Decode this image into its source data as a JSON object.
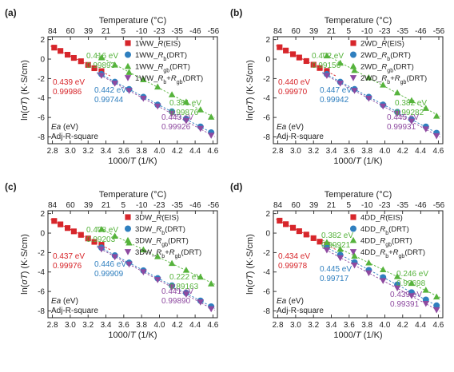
{
  "figure": {
    "x_axis_label": "1000/T (1/K)",
    "y_axis_label": "ln(σT) (K·S/cm)",
    "top_axis_label": "Temperature (°C)",
    "ea_label": "Ea (eV)",
    "adj_label": "Adj-R-square",
    "colors": {
      "eis": "#d7262b",
      "rb": "#2f7fbf",
      "rgb": "#56b33c",
      "sum": "#8e4aa0",
      "axis": "#222222"
    }
  },
  "chart_data": [
    {
      "type": "scatter",
      "panel": "(a)",
      "xlabel": "1000/T (1/K)",
      "ylabel": "ln(σT) (K·S/cm)",
      "top_xlabel": "Temperature (°C)",
      "xlim": [
        2.75,
        4.65
      ],
      "ylim": [
        -8.7,
        2.3
      ],
      "x_ticks": [
        "2.8",
        "3.0",
        "3.2",
        "3.4",
        "3.6",
        "3.8",
        "4.0",
        "4.2",
        "4.4",
        "4.6"
      ],
      "top_ticks": [
        "84",
        "60",
        "39",
        "21",
        "5",
        "-10",
        "-23",
        "-35",
        "-46",
        "-56"
      ],
      "series": [
        {
          "name": "1WW_R(EIS)",
          "marker": "square",
          "color": "#d7262b",
          "x": [
            2.82,
            2.89,
            2.97,
            3.04,
            3.12,
            3.2,
            3.27,
            3.35
          ],
          "y": [
            1.18,
            0.84,
            0.45,
            0.12,
            -0.22,
            -0.6,
            -0.94,
            -1.24
          ]
        },
        {
          "name": "1WW_Rb(DRT)",
          "marker": "circle",
          "color": "#2f7fbf",
          "x": [
            3.35,
            3.5,
            3.66,
            3.82,
            3.98,
            4.14,
            4.3,
            4.46,
            4.58
          ],
          "y": [
            -1.55,
            -2.35,
            -3.1,
            -3.9,
            -4.7,
            -5.4,
            -6.15,
            -6.95,
            -7.55
          ]
        },
        {
          "name": "1WW_Rgb(DRT)",
          "marker": "triangle-up",
          "color": "#56b33c",
          "x": [
            3.35,
            3.5,
            3.66,
            3.82,
            3.98,
            4.14,
            4.3,
            4.46,
            4.58
          ],
          "y": [
            0.15,
            -0.6,
            -1.35,
            -2.1,
            -2.85,
            -3.65,
            -4.4,
            -5.2,
            -5.95
          ]
        },
        {
          "name": "1WW_Rb+Rgb(DRT)",
          "marker": "triangle-down",
          "color": "#8e4aa0",
          "x": [
            3.35,
            3.5,
            3.66,
            3.82,
            3.98,
            4.14,
            4.3,
            4.46,
            4.58
          ],
          "y": [
            -1.7,
            -2.5,
            -3.25,
            -4.05,
            -4.85,
            -5.6,
            -6.35,
            -7.15,
            -7.85
          ]
        }
      ],
      "annotations": [
        {
          "series": "EIS",
          "ea": "0.439 eV",
          "r2": "0.99986"
        },
        {
          "series": "Rb",
          "ea": "0.442 eV",
          "r2": "0.99744"
        },
        {
          "series": "Rgb_low",
          "ea": "0.416 eV",
          "r2": "0.99893"
        },
        {
          "series": "Rgb_high",
          "ea": "0.381 eV",
          "r2": "0.99876"
        },
        {
          "series": "sum",
          "ea": "0.443 eV",
          "r2": "0.99926"
        }
      ]
    },
    {
      "type": "scatter",
      "panel": "(b)",
      "xlabel": "1000/T (1/K)",
      "ylabel": "ln(σT) (K·S/cm)",
      "top_xlabel": "Temperature (°C)",
      "xlim": [
        2.75,
        4.65
      ],
      "ylim": [
        -8.7,
        2.3
      ],
      "x_ticks": [
        "2.8",
        "3.0",
        "3.2",
        "3.4",
        "3.6",
        "3.8",
        "4.0",
        "4.2",
        "4.4",
        "4.6"
      ],
      "top_ticks": [
        "84",
        "60",
        "39",
        "21",
        "5",
        "-10",
        "-23",
        "-35",
        "-46",
        "-56"
      ],
      "series": [
        {
          "name": "2WD_R(EIS)",
          "marker": "square",
          "color": "#d7262b",
          "x": [
            2.82,
            2.89,
            2.97,
            3.04,
            3.12,
            3.2,
            3.27,
            3.35
          ],
          "y": [
            1.22,
            0.88,
            0.5,
            0.16,
            -0.2,
            -0.58,
            -0.92,
            -1.22
          ]
        },
        {
          "name": "2WD_Rb(DRT)",
          "marker": "circle",
          "color": "#2f7fbf",
          "x": [
            3.35,
            3.5,
            3.66,
            3.82,
            3.98,
            4.14,
            4.3,
            4.46,
            4.58
          ],
          "y": [
            -1.55,
            -2.35,
            -3.1,
            -3.9,
            -4.7,
            -5.45,
            -6.2,
            -6.95,
            -7.6
          ]
        },
        {
          "name": "2WD_Rgb(DRT)",
          "marker": "triangle-up",
          "color": "#56b33c",
          "x": [
            3.35,
            3.5,
            3.66,
            3.82,
            3.98,
            4.14,
            4.3,
            4.46,
            4.58
          ],
          "y": [
            0.35,
            -0.4,
            -1.15,
            -1.9,
            -2.65,
            -3.45,
            -4.25,
            -5.05,
            -5.85
          ]
        },
        {
          "name": "2WD_Rb+Rgb(DRT)",
          "marker": "triangle-down",
          "color": "#8e4aa0",
          "x": [
            3.35,
            3.5,
            3.66,
            3.82,
            3.98,
            4.14,
            4.3,
            4.46,
            4.58
          ],
          "y": [
            -1.7,
            -2.5,
            -3.25,
            -4.05,
            -4.85,
            -5.6,
            -6.4,
            -7.2,
            -7.9
          ]
        }
      ],
      "annotations": [
        {
          "series": "EIS",
          "ea": "0.440 eV",
          "r2": "0.99970"
        },
        {
          "series": "Rb",
          "ea": "0.447 eV",
          "r2": "0.99942"
        },
        {
          "series": "Rgb_low",
          "ea": "0.402 eV",
          "r2": "0.99156"
        },
        {
          "series": "Rgb_high",
          "ea": "0.382 eV",
          "r2": "0.99282"
        },
        {
          "series": "sum",
          "ea": "0.445 eV",
          "r2": "0.99931"
        }
      ]
    },
    {
      "type": "scatter",
      "panel": "(c)",
      "xlabel": "1000/T (1/K)",
      "ylabel": "ln(σT) (K·S/cm)",
      "top_xlabel": "Temperature (°C)",
      "xlim": [
        2.75,
        4.65
      ],
      "ylim": [
        -8.7,
        2.3
      ],
      "x_ticks": [
        "2.8",
        "3.0",
        "3.2",
        "3.4",
        "3.6",
        "3.8",
        "4.0",
        "4.2",
        "4.4",
        "4.6"
      ],
      "top_ticks": [
        "84",
        "60",
        "39",
        "21",
        "5",
        "-10",
        "-23",
        "-35",
        "-46",
        "-56"
      ],
      "series": [
        {
          "name": "3DW_R(EIS)",
          "marker": "square",
          "color": "#d7262b",
          "x": [
            2.82,
            2.89,
            2.97,
            3.04,
            3.12,
            3.2,
            3.27,
            3.35
          ],
          "y": [
            1.25,
            0.9,
            0.52,
            0.18,
            -0.18,
            -0.55,
            -0.9,
            -1.2
          ]
        },
        {
          "name": "3DW_Rb(DRT)",
          "marker": "circle",
          "color": "#2f7fbf",
          "x": [
            3.35,
            3.5,
            3.66,
            3.82,
            3.98,
            4.14,
            4.3,
            4.46,
            4.58
          ],
          "y": [
            -1.5,
            -2.3,
            -3.05,
            -3.85,
            -4.65,
            -5.4,
            -6.15,
            -6.95,
            -7.55
          ]
        },
        {
          "name": "3DW_Rgb(DRT)",
          "marker": "triangle-up",
          "color": "#56b33c",
          "x": [
            3.35,
            3.5,
            3.66,
            3.82,
            3.98,
            4.14,
            4.3,
            4.46,
            4.58
          ],
          "y": [
            0.4,
            -0.3,
            -1.0,
            -1.7,
            -2.4,
            -3.1,
            -3.8,
            -4.5,
            -5.2
          ]
        },
        {
          "name": "3DW_Rb+Rgb(DRT)",
          "marker": "triangle-down",
          "color": "#8e4aa0",
          "x": [
            3.35,
            3.5,
            3.66,
            3.82,
            3.98,
            4.14,
            4.3,
            4.46,
            4.58
          ],
          "y": [
            -1.65,
            -2.45,
            -3.2,
            -4.0,
            -4.8,
            -5.55,
            -6.3,
            -7.1,
            -7.8
          ]
        }
      ],
      "annotations": [
        {
          "series": "EIS",
          "ea": "0.437 eV",
          "r2": "0.99976"
        },
        {
          "series": "Rb",
          "ea": "0.446 eV",
          "r2": "0.99909"
        },
        {
          "series": "Rgb_low",
          "ea": "0.408 eV",
          "r2": "0.99203"
        },
        {
          "series": "Rgb_high",
          "ea": "0.222 eV",
          "r2": "0.89163"
        },
        {
          "series": "sum",
          "ea": "0.441 eV",
          "r2": "0.99890"
        }
      ]
    },
    {
      "type": "scatter",
      "panel": "(d)",
      "xlabel": "1000/T (1/K)",
      "ylabel": "ln(σT) (K·S/cm)",
      "top_xlabel": "Temperature (°C)",
      "xlim": [
        2.75,
        4.65
      ],
      "ylim": [
        -8.7,
        2.3
      ],
      "x_ticks": [
        "2.8",
        "3.0",
        "3.2",
        "3.4",
        "3.6",
        "3.8",
        "4.0",
        "4.2",
        "4.4",
        "4.6"
      ],
      "top_ticks": [
        "84",
        "60",
        "39",
        "21",
        "5",
        "-10",
        "-23",
        "-35",
        "-46",
        "-56"
      ],
      "series": [
        {
          "name": "4DD_R(EIS)",
          "marker": "square",
          "color": "#d7262b",
          "x": [
            2.82,
            2.89,
            2.97,
            3.04,
            3.12,
            3.2,
            3.27,
            3.35
          ],
          "y": [
            1.28,
            0.92,
            0.55,
            0.2,
            -0.15,
            -0.52,
            -0.88,
            -1.18
          ]
        },
        {
          "name": "4DD_Rb(DRT)",
          "marker": "circle",
          "color": "#2f7fbf",
          "x": [
            3.35,
            3.5,
            3.66,
            3.82,
            3.98,
            4.14,
            4.3,
            4.46,
            4.58
          ],
          "y": [
            -1.45,
            -2.25,
            -3.0,
            -3.8,
            -4.55,
            -5.3,
            -6.1,
            -6.85,
            -7.45
          ]
        },
        {
          "name": "4DD_Rgb(DRT)",
          "marker": "triangle-up",
          "color": "#56b33c",
          "x": [
            3.35,
            3.5,
            3.66,
            3.82,
            3.98,
            4.14,
            4.3,
            4.46,
            4.58
          ],
          "y": [
            -0.95,
            -1.65,
            -2.35,
            -3.05,
            -3.75,
            -4.45,
            -5.15,
            -5.85,
            -6.55
          ]
        },
        {
          "name": "4DD_Rb+Rgb(DRT)",
          "marker": "triangle-down",
          "color": "#8e4aa0",
          "x": [
            3.35,
            3.5,
            3.66,
            3.82,
            3.98,
            4.14,
            4.3,
            4.46,
            4.58
          ],
          "y": [
            -1.75,
            -2.55,
            -3.3,
            -4.1,
            -4.9,
            -5.65,
            -6.45,
            -7.25,
            -7.9
          ]
        }
      ],
      "annotations": [
        {
          "series": "EIS",
          "ea": "0.434 eV",
          "r2": "0.99978"
        },
        {
          "series": "Rb",
          "ea": "0.445 eV",
          "r2": "0.99717"
        },
        {
          "series": "Rgb_low",
          "ea": "0.382 eV",
          "r2": "0.99921"
        },
        {
          "series": "Rgb_high",
          "ea": "0.246 eV",
          "r2": "0.99698"
        },
        {
          "series": "sum",
          "ea": "0.439 eV",
          "r2": "0.99391"
        }
      ]
    }
  ]
}
